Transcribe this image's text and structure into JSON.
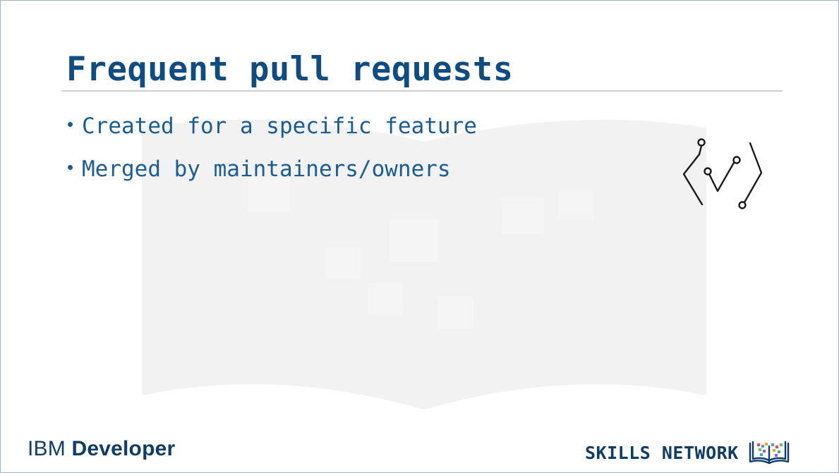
{
  "slide": {
    "title": "Frequent pull requests",
    "bullets": [
      "Created for a specific feature",
      "Merged by maintainers/owners"
    ]
  },
  "icons": {
    "main_icon": "code-check-icon",
    "watermark": "open-book-network-icon",
    "skills_icon": "book-pixels-icon"
  },
  "footer": {
    "ibm_part": "IBM",
    "developer_part": "Developer",
    "skills_network": "SKILLS NETWORK"
  },
  "colors": {
    "title": "#0f4c81",
    "body": "#1a5c96",
    "logo": "#0f3d66",
    "rule": "#cfcfcf"
  }
}
